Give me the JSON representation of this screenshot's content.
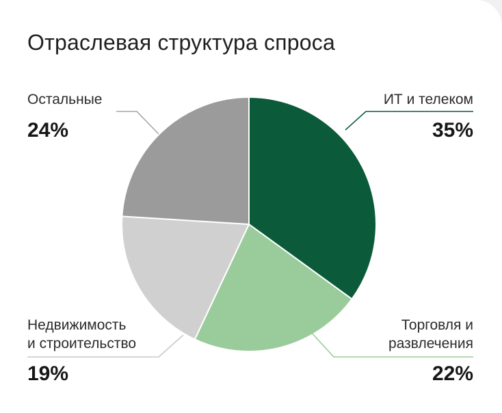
{
  "title": "Отраслевая структура спроса",
  "chart_data": {
    "type": "pie",
    "title": "Отраслевая структура спроса",
    "slices": [
      {
        "label": "ИТ и телеком",
        "value": 35,
        "value_label": "35%",
        "color": "#0b5a3a",
        "leader_color": "#0b5a3a"
      },
      {
        "label": "Торговля и развлечения",
        "label_lines": [
          "Торговля и",
          "развлечения"
        ],
        "value": 22,
        "value_label": "22%",
        "color": "#9acb9a",
        "leader_color": "#9acb9a"
      },
      {
        "label": "Недвижимость и строительство",
        "label_lines": [
          "Недвижимость",
          "и строительство"
        ],
        "value": 19,
        "value_label": "19%",
        "color": "#d0d0d0",
        "leader_color": "#c8c8c8"
      },
      {
        "label": "Остальные",
        "value": 24,
        "value_label": "24%",
        "color": "#9b9b9b",
        "leader_color": "#a5a5a5"
      }
    ],
    "start": "12 o'clock",
    "direction": "clockwise",
    "legend": "none"
  }
}
